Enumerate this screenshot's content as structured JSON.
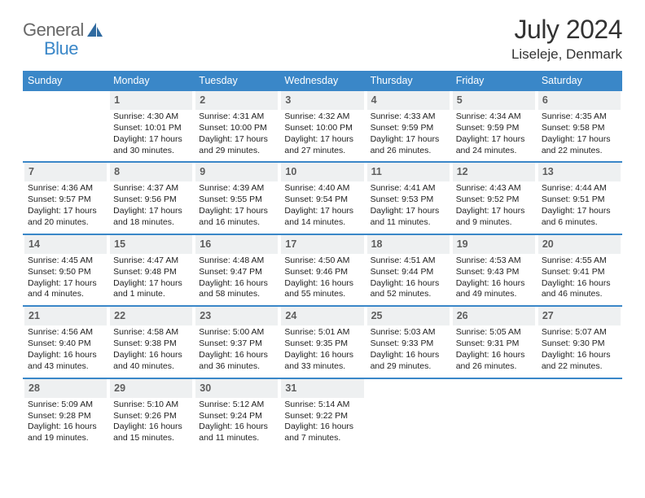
{
  "branding": {
    "word1": "General",
    "word2": "Blue",
    "logo_fill": "#2f6aa0",
    "text_gray": "#686868",
    "text_blue": "#3a87c8"
  },
  "header": {
    "title": "July 2024",
    "location": "Liseleje, Denmark"
  },
  "styling": {
    "header_bg": "#3a87c8",
    "header_fg": "#ffffff",
    "daynum_bg": "#eef0f1",
    "daynum_fg": "#5e5e5e",
    "body_fg": "#222222",
    "week_border": "#3a87c8",
    "page_bg": "#ffffff",
    "title_fontsize": 32,
    "location_fontsize": 17,
    "dayhead_fontsize": 12.5,
    "daynum_fontsize": 12.5,
    "body_fontsize": 10.5
  },
  "day_names": [
    "Sunday",
    "Monday",
    "Tuesday",
    "Wednesday",
    "Thursday",
    "Friday",
    "Saturday"
  ],
  "weeks": [
    [
      {
        "day": "",
        "lines": []
      },
      {
        "day": "1",
        "lines": [
          "Sunrise: 4:30 AM",
          "Sunset: 10:01 PM",
          "Daylight: 17 hours",
          "and 30 minutes."
        ]
      },
      {
        "day": "2",
        "lines": [
          "Sunrise: 4:31 AM",
          "Sunset: 10:00 PM",
          "Daylight: 17 hours",
          "and 29 minutes."
        ]
      },
      {
        "day": "3",
        "lines": [
          "Sunrise: 4:32 AM",
          "Sunset: 10:00 PM",
          "Daylight: 17 hours",
          "and 27 minutes."
        ]
      },
      {
        "day": "4",
        "lines": [
          "Sunrise: 4:33 AM",
          "Sunset: 9:59 PM",
          "Daylight: 17 hours",
          "and 26 minutes."
        ]
      },
      {
        "day": "5",
        "lines": [
          "Sunrise: 4:34 AM",
          "Sunset: 9:59 PM",
          "Daylight: 17 hours",
          "and 24 minutes."
        ]
      },
      {
        "day": "6",
        "lines": [
          "Sunrise: 4:35 AM",
          "Sunset: 9:58 PM",
          "Daylight: 17 hours",
          "and 22 minutes."
        ]
      }
    ],
    [
      {
        "day": "7",
        "lines": [
          "Sunrise: 4:36 AM",
          "Sunset: 9:57 PM",
          "Daylight: 17 hours",
          "and 20 minutes."
        ]
      },
      {
        "day": "8",
        "lines": [
          "Sunrise: 4:37 AM",
          "Sunset: 9:56 PM",
          "Daylight: 17 hours",
          "and 18 minutes."
        ]
      },
      {
        "day": "9",
        "lines": [
          "Sunrise: 4:39 AM",
          "Sunset: 9:55 PM",
          "Daylight: 17 hours",
          "and 16 minutes."
        ]
      },
      {
        "day": "10",
        "lines": [
          "Sunrise: 4:40 AM",
          "Sunset: 9:54 PM",
          "Daylight: 17 hours",
          "and 14 minutes."
        ]
      },
      {
        "day": "11",
        "lines": [
          "Sunrise: 4:41 AM",
          "Sunset: 9:53 PM",
          "Daylight: 17 hours",
          "and 11 minutes."
        ]
      },
      {
        "day": "12",
        "lines": [
          "Sunrise: 4:43 AM",
          "Sunset: 9:52 PM",
          "Daylight: 17 hours",
          "and 9 minutes."
        ]
      },
      {
        "day": "13",
        "lines": [
          "Sunrise: 4:44 AM",
          "Sunset: 9:51 PM",
          "Daylight: 17 hours",
          "and 6 minutes."
        ]
      }
    ],
    [
      {
        "day": "14",
        "lines": [
          "Sunrise: 4:45 AM",
          "Sunset: 9:50 PM",
          "Daylight: 17 hours",
          "and 4 minutes."
        ]
      },
      {
        "day": "15",
        "lines": [
          "Sunrise: 4:47 AM",
          "Sunset: 9:48 PM",
          "Daylight: 17 hours",
          "and 1 minute."
        ]
      },
      {
        "day": "16",
        "lines": [
          "Sunrise: 4:48 AM",
          "Sunset: 9:47 PM",
          "Daylight: 16 hours",
          "and 58 minutes."
        ]
      },
      {
        "day": "17",
        "lines": [
          "Sunrise: 4:50 AM",
          "Sunset: 9:46 PM",
          "Daylight: 16 hours",
          "and 55 minutes."
        ]
      },
      {
        "day": "18",
        "lines": [
          "Sunrise: 4:51 AM",
          "Sunset: 9:44 PM",
          "Daylight: 16 hours",
          "and 52 minutes."
        ]
      },
      {
        "day": "19",
        "lines": [
          "Sunrise: 4:53 AM",
          "Sunset: 9:43 PM",
          "Daylight: 16 hours",
          "and 49 minutes."
        ]
      },
      {
        "day": "20",
        "lines": [
          "Sunrise: 4:55 AM",
          "Sunset: 9:41 PM",
          "Daylight: 16 hours",
          "and 46 minutes."
        ]
      }
    ],
    [
      {
        "day": "21",
        "lines": [
          "Sunrise: 4:56 AM",
          "Sunset: 9:40 PM",
          "Daylight: 16 hours",
          "and 43 minutes."
        ]
      },
      {
        "day": "22",
        "lines": [
          "Sunrise: 4:58 AM",
          "Sunset: 9:38 PM",
          "Daylight: 16 hours",
          "and 40 minutes."
        ]
      },
      {
        "day": "23",
        "lines": [
          "Sunrise: 5:00 AM",
          "Sunset: 9:37 PM",
          "Daylight: 16 hours",
          "and 36 minutes."
        ]
      },
      {
        "day": "24",
        "lines": [
          "Sunrise: 5:01 AM",
          "Sunset: 9:35 PM",
          "Daylight: 16 hours",
          "and 33 minutes."
        ]
      },
      {
        "day": "25",
        "lines": [
          "Sunrise: 5:03 AM",
          "Sunset: 9:33 PM",
          "Daylight: 16 hours",
          "and 29 minutes."
        ]
      },
      {
        "day": "26",
        "lines": [
          "Sunrise: 5:05 AM",
          "Sunset: 9:31 PM",
          "Daylight: 16 hours",
          "and 26 minutes."
        ]
      },
      {
        "day": "27",
        "lines": [
          "Sunrise: 5:07 AM",
          "Sunset: 9:30 PM",
          "Daylight: 16 hours",
          "and 22 minutes."
        ]
      }
    ],
    [
      {
        "day": "28",
        "lines": [
          "Sunrise: 5:09 AM",
          "Sunset: 9:28 PM",
          "Daylight: 16 hours",
          "and 19 minutes."
        ]
      },
      {
        "day": "29",
        "lines": [
          "Sunrise: 5:10 AM",
          "Sunset: 9:26 PM",
          "Daylight: 16 hours",
          "and 15 minutes."
        ]
      },
      {
        "day": "30",
        "lines": [
          "Sunrise: 5:12 AM",
          "Sunset: 9:24 PM",
          "Daylight: 16 hours",
          "and 11 minutes."
        ]
      },
      {
        "day": "31",
        "lines": [
          "Sunrise: 5:14 AM",
          "Sunset: 9:22 PM",
          "Daylight: 16 hours",
          "and 7 minutes."
        ]
      },
      {
        "day": "",
        "lines": []
      },
      {
        "day": "",
        "lines": []
      },
      {
        "day": "",
        "lines": []
      }
    ]
  ]
}
